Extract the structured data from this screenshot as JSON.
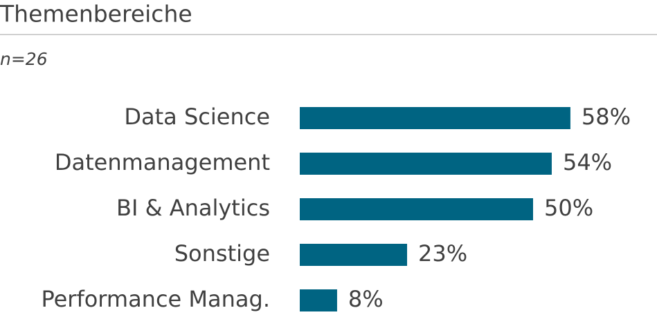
{
  "chart_data": {
    "type": "bar",
    "orientation": "horizontal",
    "title": "Themenbereiche",
    "subtitle": "n=26",
    "categories": [
      "Data Science",
      "Datenmanagement",
      "BI & Analytics",
      "Sonstige",
      "Performance Manag."
    ],
    "values": [
      58,
      54,
      50,
      23,
      8
    ],
    "value_labels": [
      "58%",
      "54%",
      "50%",
      "23%",
      "8%"
    ],
    "color": "#006482"
  }
}
